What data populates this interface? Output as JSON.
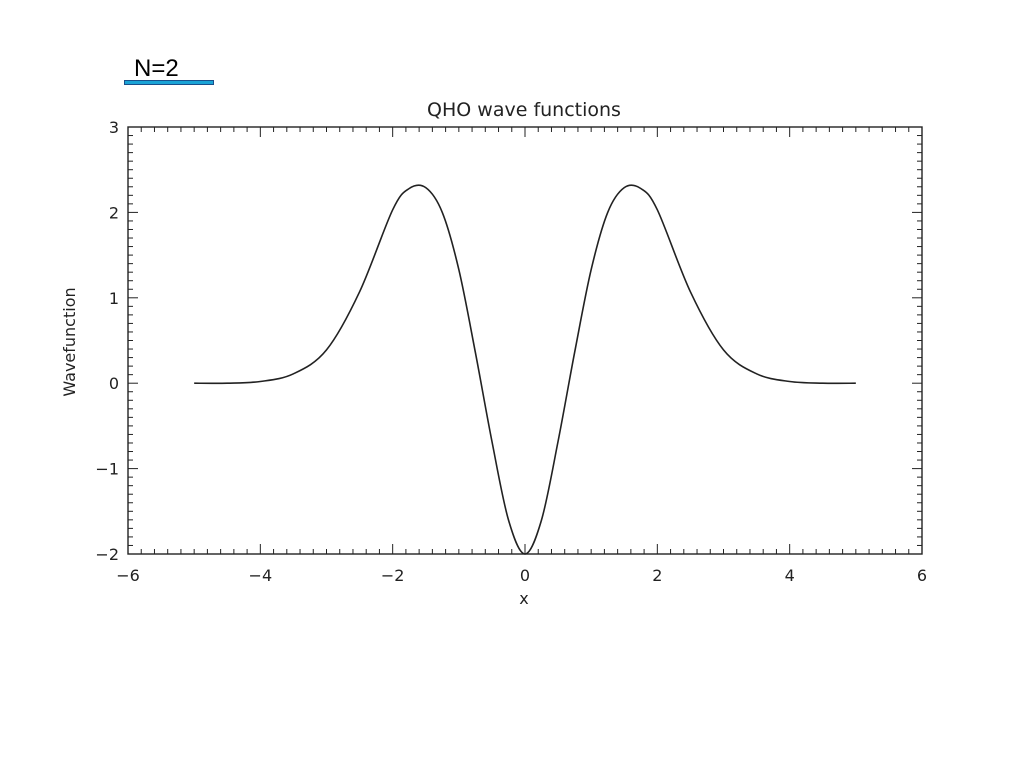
{
  "slide": {
    "label": "N=2"
  },
  "chart_data": {
    "type": "line",
    "title": "QHO wave functions",
    "xlabel": "x",
    "ylabel": "Wavefunction",
    "xlim": [
      -6,
      6
    ],
    "ylim": [
      -2,
      3
    ],
    "xticks": [
      -6,
      -4,
      -2,
      0,
      2,
      4,
      6
    ],
    "yticks": [
      -2,
      -1,
      0,
      1,
      2,
      3
    ],
    "xtick_labels": [
      "−6",
      "−4",
      "−2",
      "0",
      "2",
      "4",
      "6"
    ],
    "ytick_labels": [
      "−2",
      "−1",
      "0",
      "1",
      "2",
      "3"
    ],
    "grid": false,
    "series": [
      {
        "x": [
          -5,
          -4.5,
          -4,
          -3.5,
          -3,
          -2.5,
          -2,
          -1.75,
          -1.5,
          -1.25,
          -1,
          -0.75,
          -0.5,
          -0.25,
          0,
          0.25,
          0.5,
          0.75,
          1,
          1.25,
          1.5,
          1.75,
          2,
          2.5,
          3,
          3.5,
          4,
          4.5,
          5
        ],
        "y": [
          0.0,
          0.0,
          0.02,
          0.11,
          0.39,
          1.07,
          2.03,
          2.28,
          2.29,
          2.0,
          1.33,
          0.36,
          -0.68,
          -1.6,
          -2.0,
          -1.6,
          -0.68,
          0.36,
          1.33,
          2.0,
          2.29,
          2.28,
          2.03,
          1.07,
          0.39,
          0.11,
          0.02,
          0.0,
          0.0
        ]
      }
    ],
    "colors": {
      "line": "#222222",
      "axes": "#222222"
    }
  }
}
